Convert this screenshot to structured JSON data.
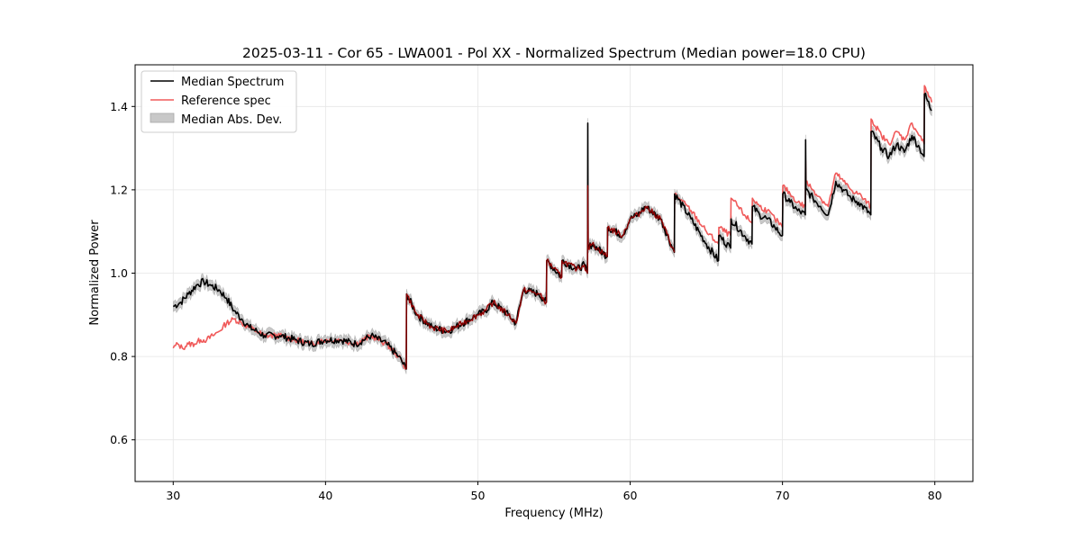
{
  "chart_data": {
    "type": "line",
    "title": "2025-03-11 - Cor 65 - LWA001 - Pol XX - Normalized Spectrum (Median power=18.0 CPU)",
    "xlabel": "Frequency (MHz)",
    "ylabel": "Normalized Power",
    "xlim": [
      27.5,
      82.5
    ],
    "ylim": [
      0.5,
      1.5
    ],
    "xticks": [
      30,
      40,
      50,
      60,
      70,
      80
    ],
    "xtick_labels": [
      "30",
      "40",
      "50",
      "60",
      "70",
      "80"
    ],
    "yticks": [
      0.6,
      0.8,
      1.0,
      1.2,
      1.4
    ],
    "ytick_labels": [
      "0.6",
      "0.8",
      "1.0",
      "1.2",
      "1.4"
    ],
    "grid": true,
    "legend_position": "upper-left",
    "legend": [
      "Median Spectrum",
      "Reference spec",
      "Median Abs. Dev."
    ],
    "colors": {
      "median": "#000000",
      "reference": "#f05a5a",
      "reference_overlap": "#8b0000",
      "mad_fill": "#c8c8c8"
    },
    "mad_width": 0.012,
    "series": [
      {
        "name": "Median Spectrum",
        "x": [
          30.0,
          30.5,
          31.0,
          31.5,
          32.0,
          32.5,
          33.0,
          33.5,
          34.0,
          34.5,
          35.0,
          35.5,
          36.0,
          37.0,
          38.0,
          39.0,
          40.0,
          41.0,
          42.0,
          43.0,
          44.0,
          44.8,
          45.3,
          45.32,
          46.0,
          47.0,
          48.0,
          48.5,
          49.0,
          50.0,
          50.5,
          51.0,
          52.0,
          52.5,
          53.0,
          54.0,
          54.5,
          54.52,
          55.5,
          55.52,
          56.5,
          57.0,
          57.2,
          57.22,
          57.24,
          57.5,
          58.5,
          58.52,
          59.5,
          60.0,
          60.5,
          61.0,
          62.0,
          62.9,
          62.92,
          64.0,
          65.0,
          65.8,
          65.82,
          66.6,
          66.62,
          67.5,
          68.0,
          68.02,
          68.5,
          69.0,
          69.5,
          70.0,
          70.02,
          70.5,
          71.0,
          71.5,
          71.52,
          71.54,
          72.0,
          72.5,
          73.0,
          73.5,
          74.0,
          74.5,
          75.0,
          75.8,
          75.82,
          76.5,
          77.0,
          77.5,
          78.0,
          78.5,
          79.0,
          79.3,
          79.32,
          79.8
        ],
        "values": [
          0.92,
          0.93,
          0.95,
          0.97,
          0.98,
          0.97,
          0.96,
          0.94,
          0.91,
          0.89,
          0.87,
          0.86,
          0.85,
          0.85,
          0.84,
          0.83,
          0.84,
          0.84,
          0.83,
          0.85,
          0.83,
          0.8,
          0.77,
          0.95,
          0.9,
          0.87,
          0.86,
          0.87,
          0.88,
          0.9,
          0.91,
          0.93,
          0.9,
          0.88,
          0.96,
          0.95,
          0.93,
          1.03,
          0.99,
          1.03,
          1.01,
          1.02,
          1.0,
          1.36,
          1.06,
          1.07,
          1.04,
          1.11,
          1.09,
          1.13,
          1.14,
          1.16,
          1.13,
          1.05,
          1.19,
          1.13,
          1.07,
          1.03,
          1.09,
          1.06,
          1.13,
          1.09,
          1.07,
          1.16,
          1.14,
          1.13,
          1.11,
          1.09,
          1.19,
          1.17,
          1.15,
          1.14,
          1.32,
          1.2,
          1.18,
          1.16,
          1.14,
          1.22,
          1.2,
          1.18,
          1.17,
          1.14,
          1.34,
          1.3,
          1.28,
          1.31,
          1.29,
          1.33,
          1.3,
          1.28,
          1.43,
          1.39
        ]
      },
      {
        "name": "Reference spec",
        "x": [
          30.0,
          30.3,
          30.6,
          31.0,
          31.4,
          31.8,
          32.2,
          32.6,
          33.0,
          33.5,
          34.0,
          34.5,
          35.0,
          35.5,
          36.0,
          37.0,
          38.0,
          39.0,
          40.0,
          41.0,
          42.0,
          43.0,
          44.0,
          44.8,
          45.3,
          45.32,
          46.0,
          47.0,
          48.0,
          48.5,
          49.0,
          50.0,
          50.5,
          51.0,
          52.0,
          52.5,
          53.0,
          54.0,
          54.5,
          54.52,
          55.5,
          55.52,
          56.5,
          57.0,
          57.2,
          57.22,
          57.24,
          57.5,
          58.5,
          58.52,
          59.5,
          60.0,
          60.5,
          61.0,
          62.0,
          62.9,
          62.92,
          64.0,
          65.0,
          65.8,
          65.82,
          66.6,
          66.62,
          67.5,
          68.0,
          68.02,
          68.5,
          69.0,
          69.5,
          70.0,
          70.02,
          70.5,
          71.0,
          71.5,
          71.52,
          71.54,
          72.0,
          72.5,
          73.0,
          73.5,
          74.0,
          74.5,
          75.0,
          75.8,
          75.82,
          76.5,
          77.0,
          77.5,
          78.0,
          78.5,
          79.0,
          79.3,
          79.32,
          79.8
        ],
        "values": [
          0.82,
          0.83,
          0.82,
          0.83,
          0.83,
          0.84,
          0.84,
          0.85,
          0.86,
          0.88,
          0.89,
          0.88,
          0.87,
          0.86,
          0.85,
          0.85,
          0.84,
          0.83,
          0.84,
          0.84,
          0.83,
          0.85,
          0.83,
          0.8,
          0.77,
          0.95,
          0.9,
          0.87,
          0.86,
          0.87,
          0.88,
          0.9,
          0.91,
          0.93,
          0.9,
          0.88,
          0.96,
          0.95,
          0.93,
          1.03,
          0.99,
          1.03,
          1.01,
          1.02,
          1.0,
          1.21,
          1.06,
          1.07,
          1.04,
          1.11,
          1.09,
          1.13,
          1.14,
          1.16,
          1.13,
          1.05,
          1.19,
          1.15,
          1.1,
          1.07,
          1.11,
          1.09,
          1.18,
          1.14,
          1.12,
          1.18,
          1.16,
          1.15,
          1.13,
          1.11,
          1.21,
          1.19,
          1.17,
          1.16,
          1.27,
          1.22,
          1.2,
          1.18,
          1.16,
          1.24,
          1.22,
          1.2,
          1.19,
          1.16,
          1.37,
          1.33,
          1.31,
          1.34,
          1.32,
          1.36,
          1.33,
          1.31,
          1.45,
          1.41
        ]
      }
    ]
  }
}
